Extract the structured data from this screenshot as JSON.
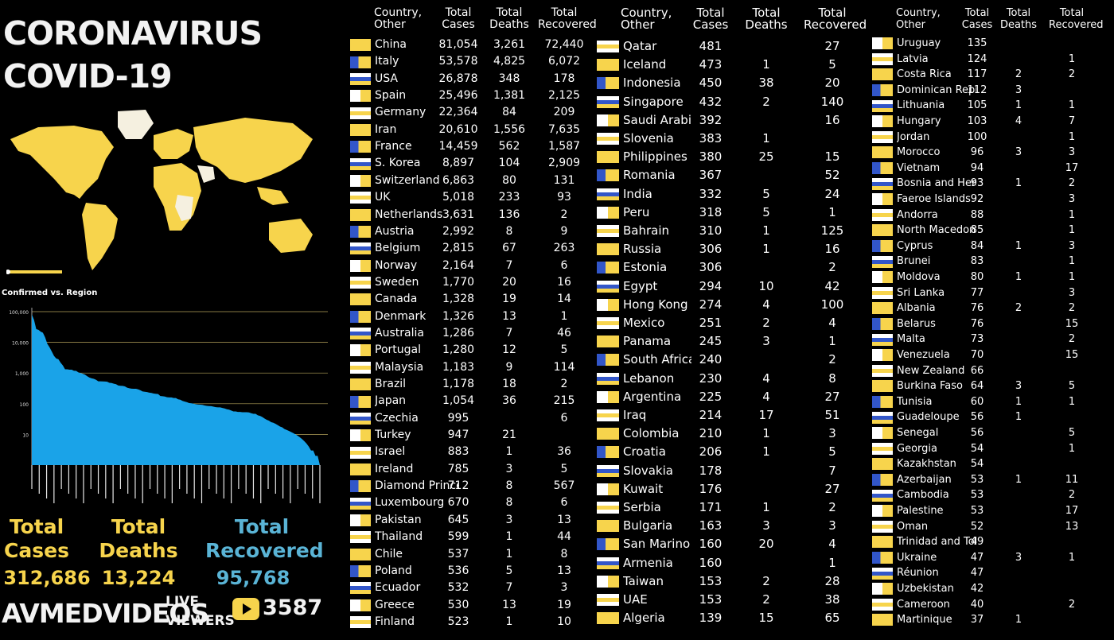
{
  "title_line1": "CORONAVIRUS",
  "title_line2": "COVID-19",
  "chart_title": "Confirmed vs. Region",
  "stats": {
    "cases_label": "Total Cases",
    "cases_value": "312,686",
    "deaths_label": "Total Deaths",
    "deaths_value": "13,224",
    "recovered_label": "Total Recovered",
    "recovered_value": "95,768"
  },
  "brand": "AVMEDVIDEOS",
  "live_label_1": "LIVE",
  "live_label_2": "VIEWERS",
  "live_viewers": "3587",
  "colors": {
    "accent": "#f7d44c",
    "recovered": "#5ab4d6",
    "chart": "#1aa3e8",
    "map_land": "#f7d44c"
  },
  "columns": [
    {
      "country": "Country, Other",
      "cases": "Total Cases",
      "deaths": "Total Deaths",
      "recovered": "Total Recovered"
    },
    {
      "country": "Country, Other",
      "cases": "Total Cases",
      "deaths": "Total Deaths",
      "recovered": "Total Recovered"
    },
    {
      "country": "Country, Other",
      "cases": "Total Cases",
      "deaths": "Total Deaths",
      "recovered": "Total Recovered"
    }
  ],
  "table1": [
    [
      "China",
      "81,054",
      "3,261",
      "72,440"
    ],
    [
      "Italy",
      "53,578",
      "4,825",
      "6,072"
    ],
    [
      "USA",
      "26,878",
      "348",
      "178"
    ],
    [
      "Spain",
      "25,496",
      "1,381",
      "2,125"
    ],
    [
      "Germany",
      "22,364",
      "84",
      "209"
    ],
    [
      "Iran",
      "20,610",
      "1,556",
      "7,635"
    ],
    [
      "France",
      "14,459",
      "562",
      "1,587"
    ],
    [
      "S. Korea",
      "8,897",
      "104",
      "2,909"
    ],
    [
      "Switzerland",
      "6,863",
      "80",
      "131"
    ],
    [
      "UK",
      "5,018",
      "233",
      "93"
    ],
    [
      "Netherlands",
      "3,631",
      "136",
      "2"
    ],
    [
      "Austria",
      "2,992",
      "8",
      "9"
    ],
    [
      "Belgium",
      "2,815",
      "67",
      "263"
    ],
    [
      "Norway",
      "2,164",
      "7",
      "6"
    ],
    [
      "Sweden",
      "1,770",
      "20",
      "16"
    ],
    [
      "Canada",
      "1,328",
      "19",
      "14"
    ],
    [
      "Denmark",
      "1,326",
      "13",
      "1"
    ],
    [
      "Australia",
      "1,286",
      "7",
      "46"
    ],
    [
      "Portugal",
      "1,280",
      "12",
      "5"
    ],
    [
      "Malaysia",
      "1,183",
      "9",
      "114"
    ],
    [
      "Brazil",
      "1,178",
      "18",
      "2"
    ],
    [
      "Japan",
      "1,054",
      "36",
      "215"
    ],
    [
      "Czechia",
      "995",
      "",
      "6"
    ],
    [
      "Turkey",
      "947",
      "21",
      ""
    ],
    [
      "Israel",
      "883",
      "1",
      "36"
    ],
    [
      "Ireland",
      "785",
      "3",
      "5"
    ],
    [
      "Diamond Princess",
      "712",
      "8",
      "567"
    ],
    [
      "Luxembourg",
      "670",
      "8",
      "6"
    ],
    [
      "Pakistan",
      "645",
      "3",
      "13"
    ],
    [
      "Thailand",
      "599",
      "1",
      "44"
    ],
    [
      "Chile",
      "537",
      "1",
      "8"
    ],
    [
      "Poland",
      "536",
      "5",
      "13"
    ],
    [
      "Ecuador",
      "532",
      "7",
      "3"
    ],
    [
      "Greece",
      "530",
      "13",
      "19"
    ],
    [
      "Finland",
      "523",
      "1",
      "10"
    ]
  ],
  "table2": [
    [
      "Qatar",
      "481",
      "",
      "27"
    ],
    [
      "Iceland",
      "473",
      "1",
      "5"
    ],
    [
      "Indonesia",
      "450",
      "38",
      "20"
    ],
    [
      "Singapore",
      "432",
      "2",
      "140"
    ],
    [
      "Saudi Arabia",
      "392",
      "",
      "16"
    ],
    [
      "Slovenia",
      "383",
      "1",
      ""
    ],
    [
      "Philippines",
      "380",
      "25",
      "15"
    ],
    [
      "Romania",
      "367",
      "",
      "52"
    ],
    [
      "India",
      "332",
      "5",
      "24"
    ],
    [
      "Peru",
      "318",
      "5",
      "1"
    ],
    [
      "Bahrain",
      "310",
      "1",
      "125"
    ],
    [
      "Russia",
      "306",
      "1",
      "16"
    ],
    [
      "Estonia",
      "306",
      "",
      "2"
    ],
    [
      "Egypt",
      "294",
      "10",
      "42"
    ],
    [
      "Hong Kong",
      "274",
      "4",
      "100"
    ],
    [
      "Mexico",
      "251",
      "2",
      "4"
    ],
    [
      "Panama",
      "245",
      "3",
      "1"
    ],
    [
      "South Africa",
      "240",
      "",
      "2"
    ],
    [
      "Lebanon",
      "230",
      "4",
      "8"
    ],
    [
      "Argentina",
      "225",
      "4",
      "27"
    ],
    [
      "Iraq",
      "214",
      "17",
      "51"
    ],
    [
      "Colombia",
      "210",
      "1",
      "3"
    ],
    [
      "Croatia",
      "206",
      "1",
      "5"
    ],
    [
      "Slovakia",
      "178",
      "",
      "7"
    ],
    [
      "Kuwait",
      "176",
      "",
      "27"
    ],
    [
      "Serbia",
      "171",
      "1",
      "2"
    ],
    [
      "Bulgaria",
      "163",
      "3",
      "3"
    ],
    [
      "San Marino",
      "160",
      "20",
      "4"
    ],
    [
      "Armenia",
      "160",
      "",
      "1"
    ],
    [
      "Taiwan",
      "153",
      "2",
      "28"
    ],
    [
      "UAE",
      "153",
      "2",
      "38"
    ],
    [
      "Algeria",
      "139",
      "15",
      "65"
    ]
  ],
  "table3": [
    [
      "Uruguay",
      "135",
      "",
      ""
    ],
    [
      "Latvia",
      "124",
      "",
      "1"
    ],
    [
      "Costa Rica",
      "117",
      "2",
      "2"
    ],
    [
      "Dominican Republic",
      "112",
      "3",
      ""
    ],
    [
      "Lithuania",
      "105",
      "1",
      "1"
    ],
    [
      "Hungary",
      "103",
      "4",
      "7"
    ],
    [
      "Jordan",
      "100",
      "",
      "1"
    ],
    [
      "Morocco",
      "96",
      "3",
      "3"
    ],
    [
      "Vietnam",
      "94",
      "",
      "17"
    ],
    [
      "Bosnia and Herzegovina",
      "93",
      "1",
      "2"
    ],
    [
      "Faeroe Islands",
      "92",
      "",
      "3"
    ],
    [
      "Andorra",
      "88",
      "",
      "1"
    ],
    [
      "North Macedonia",
      "85",
      "",
      "1"
    ],
    [
      "Cyprus",
      "84",
      "1",
      "3"
    ],
    [
      "Brunei",
      "83",
      "",
      "1"
    ],
    [
      "Moldova",
      "80",
      "1",
      "1"
    ],
    [
      "Sri Lanka",
      "77",
      "",
      "3"
    ],
    [
      "Albania",
      "76",
      "2",
      "2"
    ],
    [
      "Belarus",
      "76",
      "",
      "15"
    ],
    [
      "Malta",
      "73",
      "",
      "2"
    ],
    [
      "Venezuela",
      "70",
      "",
      "15"
    ],
    [
      "New Zealand",
      "66",
      "",
      ""
    ],
    [
      "Burkina Faso",
      "64",
      "3",
      "5"
    ],
    [
      "Tunisia",
      "60",
      "1",
      "1"
    ],
    [
      "Guadeloupe",
      "56",
      "1",
      ""
    ],
    [
      "Senegal",
      "56",
      "",
      "5"
    ],
    [
      "Georgia",
      "54",
      "",
      "1"
    ],
    [
      "Kazakhstan",
      "54",
      "",
      ""
    ],
    [
      "Azerbaijan",
      "53",
      "1",
      "11"
    ],
    [
      "Cambodia",
      "53",
      "",
      "2"
    ],
    [
      "Palestine",
      "53",
      "",
      "17"
    ],
    [
      "Oman",
      "52",
      "",
      "13"
    ],
    [
      "Trinidad and Tobago",
      "49",
      "",
      ""
    ],
    [
      "Ukraine",
      "47",
      "3",
      "1"
    ],
    [
      "Réunion",
      "47",
      "",
      ""
    ],
    [
      "Uzbekistan",
      "42",
      "",
      ""
    ],
    [
      "Cameroon",
      "40",
      "",
      "2"
    ],
    [
      "Martinique",
      "37",
      "1",
      ""
    ]
  ],
  "chart_data": {
    "type": "area",
    "title": "Confirmed vs. Region",
    "yscale": "log",
    "yticks": [
      "100,000",
      "10,000",
      "1,000",
      "100",
      "10"
    ],
    "ylim": [
      1,
      100000
    ],
    "series": [
      {
        "values": [
          81054,
          53578,
          26878,
          25496,
          22364,
          20610,
          14459,
          8897,
          6863,
          5018,
          3631,
          2992,
          2815,
          2164,
          1770,
          1328,
          1326,
          1286,
          1280,
          1183,
          1178,
          1054,
          995,
          947,
          883,
          785,
          712,
          670,
          645,
          599,
          537,
          536,
          532,
          530,
          523,
          481,
          473,
          450,
          432,
          392,
          383,
          380,
          367,
          332,
          318,
          310,
          306,
          306,
          294,
          274,
          251,
          245,
          240,
          230,
          225,
          214,
          210,
          206,
          178,
          176,
          171,
          163,
          160,
          160,
          153,
          153,
          139,
          135,
          124,
          117,
          112,
          105,
          103,
          100,
          96,
          94,
          93,
          92,
          88,
          85,
          84,
          83,
          80,
          77,
          76,
          76,
          73,
          70,
          66,
          64,
          60,
          56,
          56,
          54,
          54,
          53,
          53,
          53,
          52,
          49,
          47,
          47,
          42,
          40,
          37,
          33,
          30,
          28,
          25,
          24,
          22,
          20,
          18,
          17,
          15,
          14,
          13,
          12,
          11,
          10,
          9,
          8,
          7,
          6,
          5,
          4,
          3,
          3,
          2,
          2,
          1
        ]
      }
    ]
  }
}
